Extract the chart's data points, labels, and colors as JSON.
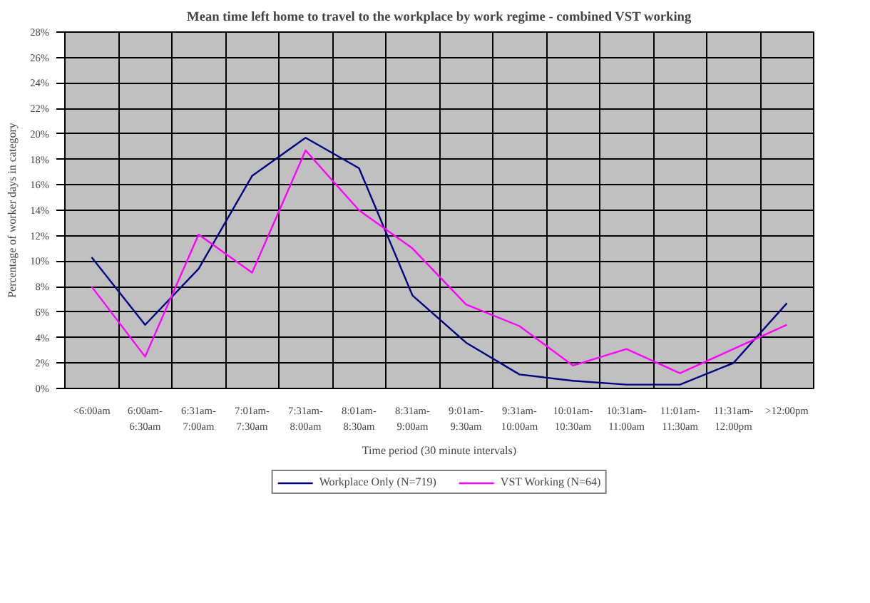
{
  "chart_data": {
    "type": "line",
    "title": "Mean time left home to travel to the workplace by work regime - combined VST working",
    "xlabel": "Time period (30 minute intervals)",
    "ylabel": "Percentage of worker days in category",
    "categories": [
      "<6:00am",
      "6:00am-\n6:30am",
      "6:31am-\n7:00am",
      "7:01am-\n7:30am",
      "7:31am-\n8:00am",
      "8:01am-\n8:30am",
      "8:31am-\n9:00am",
      "9:01am-\n9:30am",
      "9:31am-\n10:00am",
      "10:01am-\n10:30am",
      "10:31am-\n11:00am",
      "11:01am-\n11:30am",
      "11:31am-\n12:00pm",
      ">12:00pm"
    ],
    "series": [
      {
        "name": "Workplace Only (N=719)",
        "color": "#000080",
        "values": [
          10.3,
          5.0,
          9.4,
          16.7,
          19.7,
          17.3,
          7.3,
          3.6,
          1.1,
          0.6,
          0.3,
          0.3,
          2.0,
          6.7
        ]
      },
      {
        "name": "VST Working (N=64)",
        "color": "#ff00ff",
        "values": [
          8.0,
          2.5,
          12.1,
          9.1,
          18.7,
          14.0,
          11.0,
          6.6,
          4.9,
          1.8,
          3.1,
          1.2,
          3.1,
          5.0
        ]
      }
    ],
    "ylim": [
      0,
      28
    ],
    "yticks": [
      {
        "value": 0,
        "label": "0%"
      },
      {
        "value": 2,
        "label": "2%"
      },
      {
        "value": 4,
        "label": "4%"
      },
      {
        "value": 6,
        "label": "6%"
      },
      {
        "value": 8,
        "label": "8%"
      },
      {
        "value": 10,
        "label": "10%"
      },
      {
        "value": 12,
        "label": "12%"
      },
      {
        "value": 14,
        "label": "14%"
      },
      {
        "value": 16,
        "label": "16%"
      },
      {
        "value": 18,
        "label": "18%"
      },
      {
        "value": 20,
        "label": "20%"
      },
      {
        "value": 22,
        "label": "22%"
      },
      {
        "value": 24,
        "label": "24%"
      },
      {
        "value": 26,
        "label": "26%"
      },
      {
        "value": 28,
        "label": "28%"
      }
    ],
    "grid": true,
    "legend": "bottom",
    "marker": "none",
    "line_style": "solid"
  }
}
